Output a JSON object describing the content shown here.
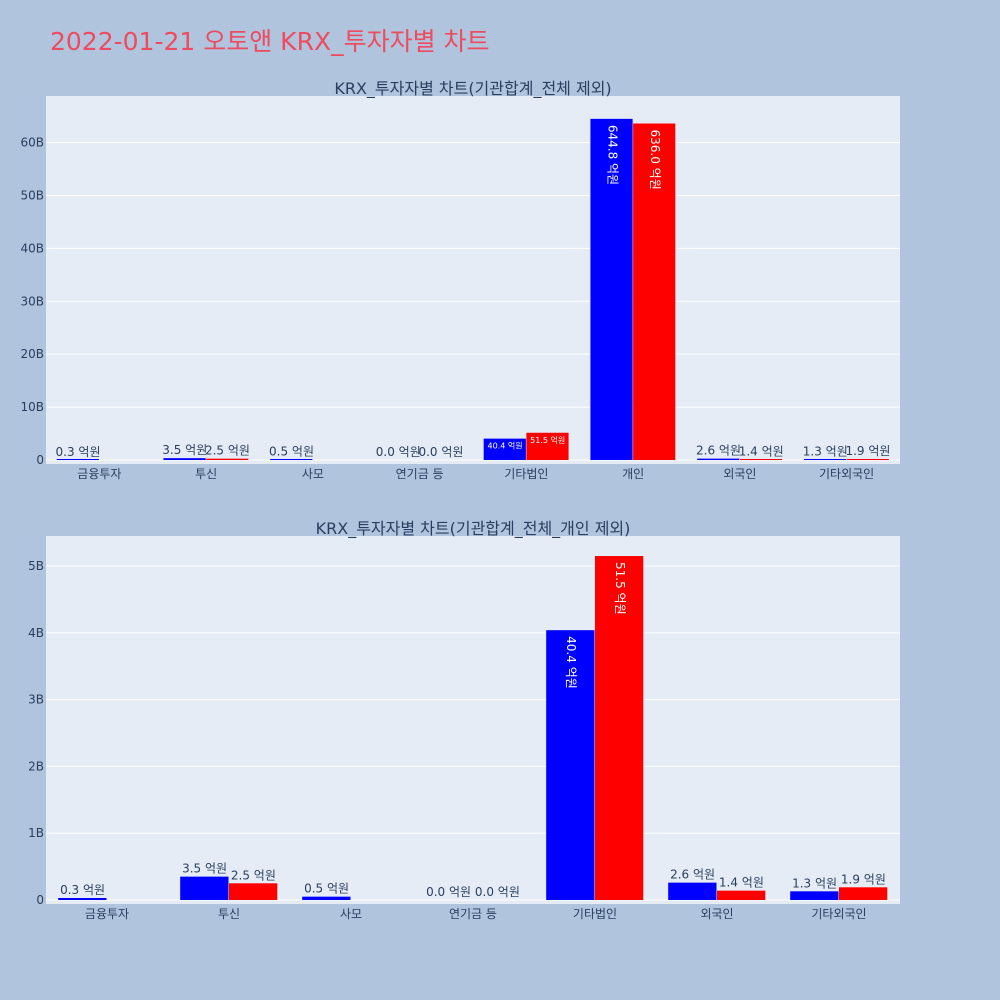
{
  "title": "2022-01-21 오토앤 KRX_투자자별 차트",
  "colors": {
    "background": "#b0c4de",
    "plot_bg": "#e5ecf6",
    "grid": "#ffffff",
    "buy": "#0000ff",
    "sell": "#ff0000",
    "title": "#ef4b5e",
    "text": "#2a3f5f"
  },
  "chart_data": [
    {
      "type": "bar",
      "title": "KRX_투자자별 차트(기관합계_전체 제외)",
      "categories": [
        "금융투자",
        "투신",
        "사모",
        "연기금 등",
        "기타법인",
        "개인",
        "외국인",
        "기타외국인"
      ],
      "series": [
        {
          "color": "#0000ff",
          "values": [
            0.03,
            0.35,
            0.05,
            0.0,
            4.04,
            64.48,
            0.26,
            0.13
          ],
          "labels": [
            "0.3 억원",
            "3.5 억원",
            "0.5 억원",
            "0.0 억원",
            "40.4 억원",
            "644.8 억원",
            "2.6 억원",
            "1.3 억원"
          ]
        },
        {
          "color": "#ff0000",
          "values": [
            0,
            0.25,
            0,
            0.0,
            5.15,
            63.6,
            0.14,
            0.19
          ],
          "labels": [
            "",
            "2.5 억원",
            "",
            "0.0 억원",
            "51.5 억원",
            "636.0 억원",
            "1.4 억원",
            "1.9 억원"
          ]
        }
      ],
      "yticks": [
        0,
        10,
        20,
        30,
        40,
        50,
        60
      ],
      "ytick_labels": [
        "0",
        "10B",
        "20B",
        "30B",
        "40B",
        "50B",
        "60B"
      ],
      "ylim": [
        0,
        68.8
      ],
      "grid": true
    },
    {
      "type": "bar",
      "title": "KRX_투자자별 차트(기관합계_전체_개인 제외)",
      "categories": [
        "금융투자",
        "투신",
        "사모",
        "연기금 등",
        "기타법인",
        "외국인",
        "기타외국인"
      ],
      "series": [
        {
          "color": "#0000ff",
          "values": [
            0.03,
            0.35,
            0.05,
            0.0,
            4.04,
            0.26,
            0.13
          ],
          "labels": [
            "0.3 억원",
            "3.5 억원",
            "0.5 억원",
            "0.0 억원",
            "40.4 억원",
            "2.6 억원",
            "1.3 억원"
          ]
        },
        {
          "color": "#ff0000",
          "values": [
            0,
            0.25,
            0,
            0.0,
            5.15,
            0.14,
            0.19
          ],
          "labels": [
            "",
            "2.5 억원",
            "",
            "0.0 억원",
            "51.5 억원",
            "1.4 억원",
            "1.9 억원"
          ]
        }
      ],
      "yticks": [
        0,
        1,
        2,
        3,
        4,
        5
      ],
      "ytick_labels": [
        "0",
        "1B",
        "2B",
        "3B",
        "4B",
        "5B"
      ],
      "ylim": [
        0,
        5.45
      ],
      "grid": true
    }
  ]
}
